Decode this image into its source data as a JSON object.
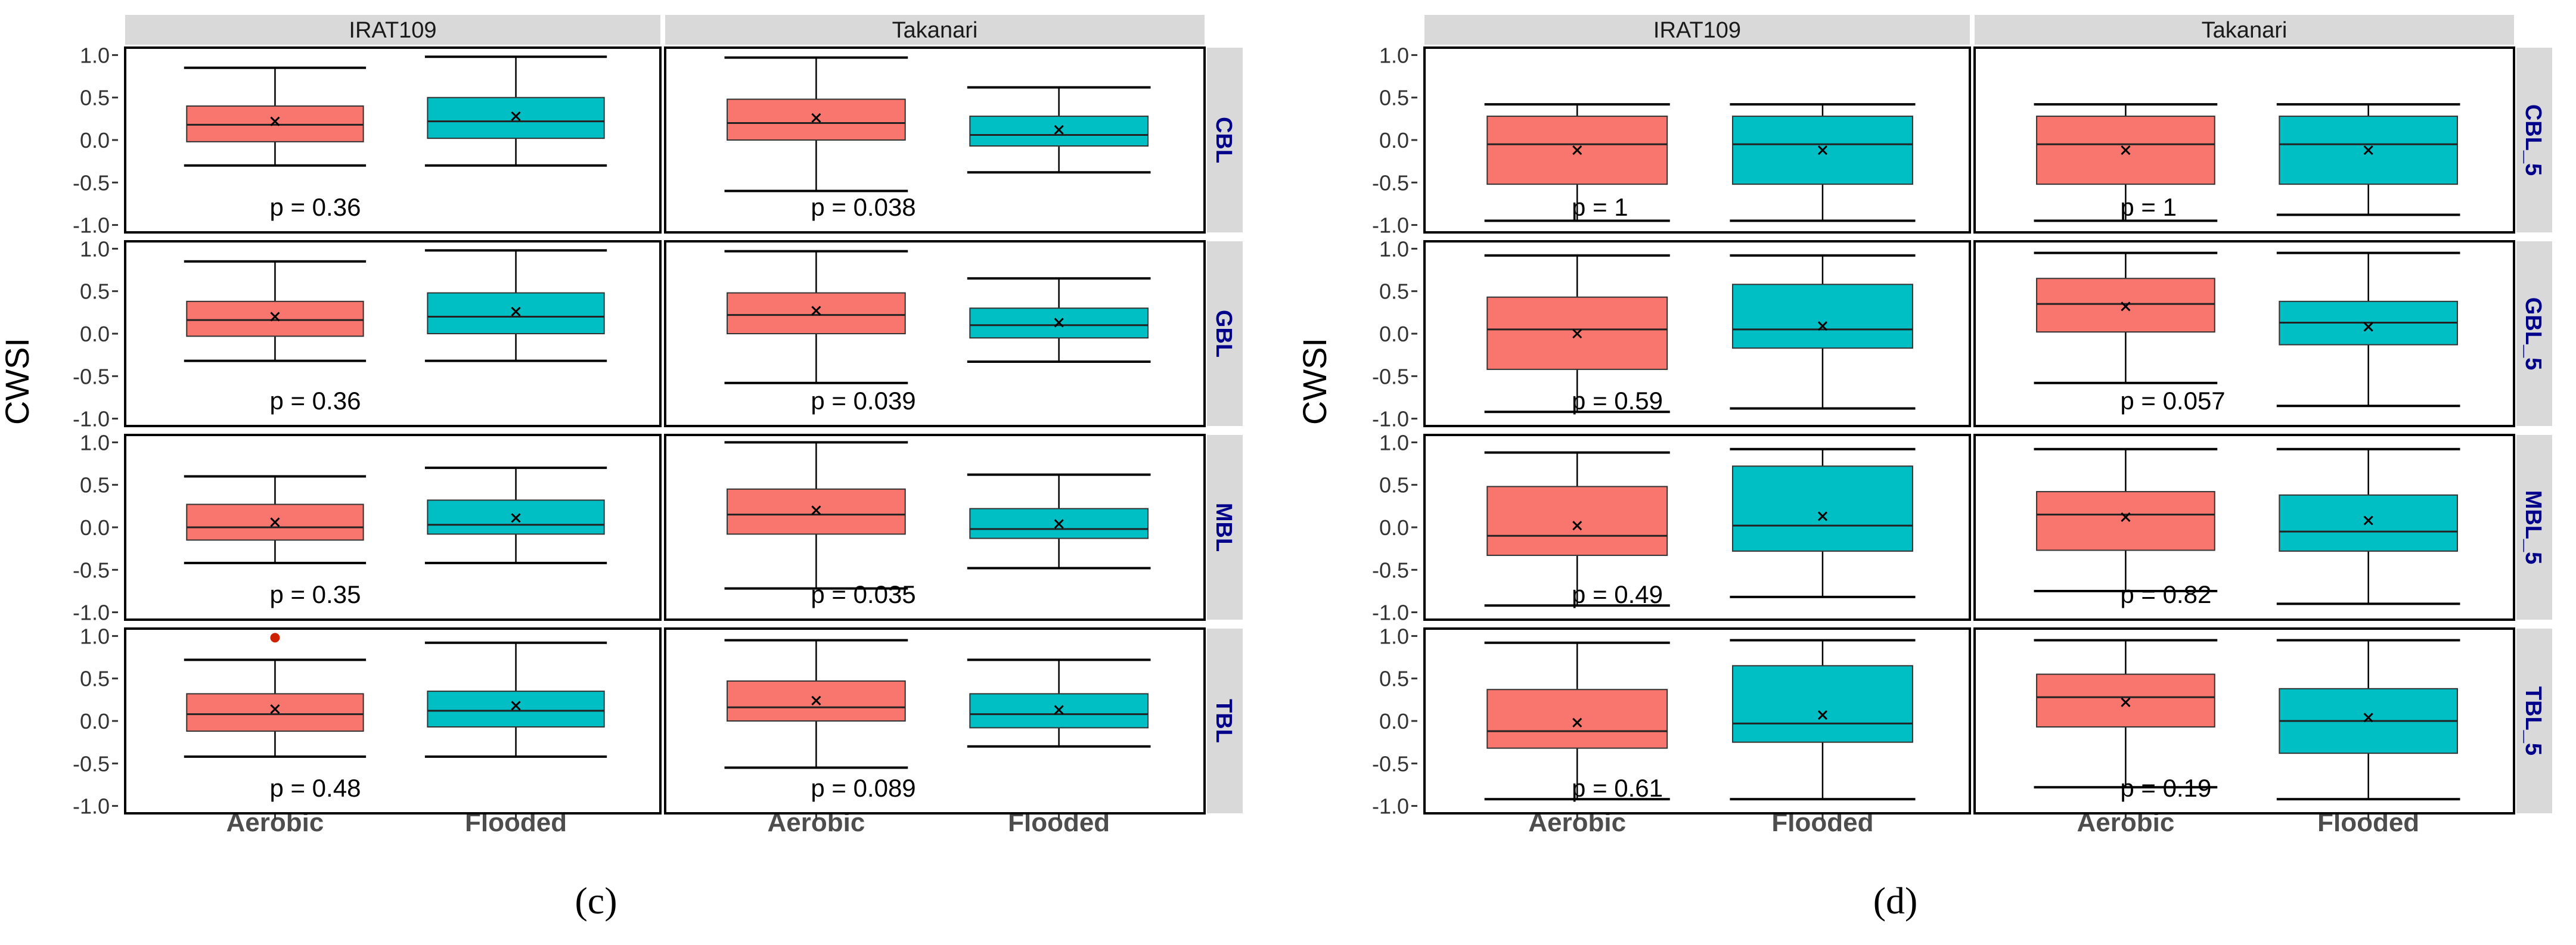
{
  "colors": {
    "aerobic": "#F8766D",
    "flooded": "#00BFC4",
    "strip": "#D9D9D9",
    "facet_right": "#00008B",
    "point": "#CC2200"
  },
  "figure": {
    "panel_c_label": "(c)",
    "panel_d_label": "(d)"
  },
  "chart_data": [
    {
      "type": "box",
      "panel": "(c)",
      "ylabel": "CWSI",
      "ylim": [
        -1.0,
        1.0
      ],
      "yticks": [
        "-1.0",
        "-0.5",
        "0.0",
        "0.5",
        "1.0"
      ],
      "columns": [
        "IRAT109",
        "Takanari"
      ],
      "rows": [
        "CBL",
        "GBL",
        "MBL",
        "TBL"
      ],
      "categories": [
        "Aerobic",
        "Flooded"
      ],
      "facets": [
        {
          "row": 0,
          "col": 0,
          "p": "p = 0.36",
          "boxes": [
            {
              "group": "Aerobic",
              "min": -0.3,
              "q1": -0.02,
              "median": 0.18,
              "q3": 0.4,
              "max": 0.85,
              "mean": 0.22,
              "outliers": []
            },
            {
              "group": "Flooded",
              "min": -0.3,
              "q1": 0.02,
              "median": 0.22,
              "q3": 0.5,
              "max": 0.98,
              "mean": 0.28,
              "outliers": []
            }
          ]
        },
        {
          "row": 0,
          "col": 1,
          "p": "p = 0.038",
          "boxes": [
            {
              "group": "Aerobic",
              "min": -0.6,
              "q1": 0.0,
              "median": 0.2,
              "q3": 0.48,
              "max": 0.97,
              "mean": 0.26,
              "outliers": []
            },
            {
              "group": "Flooded",
              "min": -0.38,
              "q1": -0.07,
              "median": 0.06,
              "q3": 0.28,
              "max": 0.62,
              "mean": 0.12,
              "outliers": []
            }
          ]
        },
        {
          "row": 1,
          "col": 0,
          "p": "p = 0.36",
          "boxes": [
            {
              "group": "Aerobic",
              "min": -0.32,
              "q1": -0.03,
              "median": 0.16,
              "q3": 0.38,
              "max": 0.85,
              "mean": 0.2,
              "outliers": []
            },
            {
              "group": "Flooded",
              "min": -0.32,
              "q1": 0.0,
              "median": 0.2,
              "q3": 0.48,
              "max": 0.98,
              "mean": 0.26,
              "outliers": []
            }
          ]
        },
        {
          "row": 1,
          "col": 1,
          "p": "p = 0.039",
          "boxes": [
            {
              "group": "Aerobic",
              "min": -0.58,
              "q1": 0.0,
              "median": 0.22,
              "q3": 0.48,
              "max": 0.97,
              "mean": 0.27,
              "outliers": []
            },
            {
              "group": "Flooded",
              "min": -0.33,
              "q1": -0.05,
              "median": 0.1,
              "q3": 0.3,
              "max": 0.65,
              "mean": 0.13,
              "outliers": []
            }
          ]
        },
        {
          "row": 2,
          "col": 0,
          "p": "p = 0.35",
          "boxes": [
            {
              "group": "Aerobic",
              "min": -0.42,
              "q1": -0.15,
              "median": 0.0,
              "q3": 0.27,
              "max": 0.6,
              "mean": 0.06,
              "outliers": []
            },
            {
              "group": "Flooded",
              "min": -0.42,
              "q1": -0.08,
              "median": 0.03,
              "q3": 0.32,
              "max": 0.7,
              "mean": 0.11,
              "outliers": []
            }
          ]
        },
        {
          "row": 2,
          "col": 1,
          "p": "p = 0.035",
          "boxes": [
            {
              "group": "Aerobic",
              "min": -0.72,
              "q1": -0.08,
              "median": 0.15,
              "q3": 0.45,
              "max": 1.0,
              "mean": 0.2,
              "outliers": []
            },
            {
              "group": "Flooded",
              "min": -0.48,
              "q1": -0.13,
              "median": -0.02,
              "q3": 0.22,
              "max": 0.62,
              "mean": 0.04,
              "outliers": []
            }
          ]
        },
        {
          "row": 3,
          "col": 0,
          "p": "p = 0.48",
          "boxes": [
            {
              "group": "Aerobic",
              "min": -0.42,
              "q1": -0.12,
              "median": 0.08,
              "q3": 0.32,
              "max": 0.72,
              "mean": 0.14,
              "outliers": [
                0.98
              ]
            },
            {
              "group": "Flooded",
              "min": -0.42,
              "q1": -0.07,
              "median": 0.12,
              "q3": 0.35,
              "max": 0.92,
              "mean": 0.18,
              "outliers": []
            }
          ]
        },
        {
          "row": 3,
          "col": 1,
          "p": "p = 0.089",
          "boxes": [
            {
              "group": "Aerobic",
              "min": -0.55,
              "q1": 0.0,
              "median": 0.16,
              "q3": 0.47,
              "max": 0.95,
              "mean": 0.24,
              "outliers": []
            },
            {
              "group": "Flooded",
              "min": -0.3,
              "q1": -0.08,
              "median": 0.08,
              "q3": 0.32,
              "max": 0.72,
              "mean": 0.13,
              "outliers": []
            }
          ]
        }
      ]
    },
    {
      "type": "box",
      "panel": "(d)",
      "ylabel": "CWSI",
      "ylim": [
        -1.0,
        1.0
      ],
      "yticks": [
        "-1.0",
        "-0.5",
        "0.0",
        "0.5",
        "1.0"
      ],
      "columns": [
        "IRAT109",
        "Takanari"
      ],
      "rows": [
        "CBL_5",
        "GBL_5",
        "MBL_5",
        "TBL_5"
      ],
      "categories": [
        "Aerobic",
        "Flooded"
      ],
      "facets": [
        {
          "row": 0,
          "col": 0,
          "p": "p = 1",
          "boxes": [
            {
              "group": "Aerobic",
              "min": -0.95,
              "q1": -0.52,
              "median": -0.05,
              "q3": 0.28,
              "max": 0.42,
              "mean": -0.12,
              "outliers": []
            },
            {
              "group": "Flooded",
              "min": -0.95,
              "q1": -0.52,
              "median": -0.05,
              "q3": 0.28,
              "max": 0.42,
              "mean": -0.12,
              "outliers": []
            }
          ]
        },
        {
          "row": 0,
          "col": 1,
          "p": "p = 1",
          "boxes": [
            {
              "group": "Aerobic",
              "min": -0.95,
              "q1": -0.52,
              "median": -0.05,
              "q3": 0.28,
              "max": 0.42,
              "mean": -0.12,
              "outliers": []
            },
            {
              "group": "Flooded",
              "min": -0.88,
              "q1": -0.52,
              "median": -0.05,
              "q3": 0.28,
              "max": 0.42,
              "mean": -0.12,
              "outliers": []
            }
          ]
        },
        {
          "row": 1,
          "col": 0,
          "p": "p = 0.59",
          "boxes": [
            {
              "group": "Aerobic",
              "min": -0.92,
              "q1": -0.42,
              "median": 0.05,
              "q3": 0.43,
              "max": 0.92,
              "mean": 0.0,
              "outliers": []
            },
            {
              "group": "Flooded",
              "min": -0.88,
              "q1": -0.17,
              "median": 0.05,
              "q3": 0.58,
              "max": 0.92,
              "mean": 0.09,
              "outliers": []
            }
          ]
        },
        {
          "row": 1,
          "col": 1,
          "p": "p = 0.057",
          "boxes": [
            {
              "group": "Aerobic",
              "min": -0.58,
              "q1": 0.02,
              "median": 0.35,
              "q3": 0.65,
              "max": 0.95,
              "mean": 0.32,
              "outliers": []
            },
            {
              "group": "Flooded",
              "min": -0.85,
              "q1": -0.13,
              "median": 0.13,
              "q3": 0.38,
              "max": 0.95,
              "mean": 0.08,
              "outliers": []
            }
          ]
        },
        {
          "row": 2,
          "col": 0,
          "p": "p = 0.49",
          "boxes": [
            {
              "group": "Aerobic",
              "min": -0.92,
              "q1": -0.33,
              "median": -0.1,
              "q3": 0.48,
              "max": 0.88,
              "mean": 0.02,
              "outliers": []
            },
            {
              "group": "Flooded",
              "min": -0.82,
              "q1": -0.28,
              "median": 0.02,
              "q3": 0.72,
              "max": 0.92,
              "mean": 0.13,
              "outliers": []
            }
          ]
        },
        {
          "row": 2,
          "col": 1,
          "p": "p = 0.82",
          "boxes": [
            {
              "group": "Aerobic",
              "min": -0.75,
              "q1": -0.27,
              "median": 0.15,
              "q3": 0.42,
              "max": 0.92,
              "mean": 0.12,
              "outliers": []
            },
            {
              "group": "Flooded",
              "min": -0.9,
              "q1": -0.28,
              "median": -0.05,
              "q3": 0.38,
              "max": 0.92,
              "mean": 0.08,
              "outliers": []
            }
          ]
        },
        {
          "row": 3,
          "col": 0,
          "p": "p = 0.61",
          "boxes": [
            {
              "group": "Aerobic",
              "min": -0.92,
              "q1": -0.32,
              "median": -0.12,
              "q3": 0.37,
              "max": 0.92,
              "mean": -0.02,
              "outliers": []
            },
            {
              "group": "Flooded",
              "min": -0.92,
              "q1": -0.25,
              "median": -0.03,
              "q3": 0.65,
              "max": 0.95,
              "mean": 0.07,
              "outliers": []
            }
          ]
        },
        {
          "row": 3,
          "col": 1,
          "p": "p = 0.19",
          "boxes": [
            {
              "group": "Aerobic",
              "min": -0.78,
              "q1": -0.07,
              "median": 0.28,
              "q3": 0.55,
              "max": 0.95,
              "mean": 0.22,
              "outliers": []
            },
            {
              "group": "Flooded",
              "min": -0.92,
              "q1": -0.38,
              "median": 0.0,
              "q3": 0.38,
              "max": 0.95,
              "mean": 0.04,
              "outliers": []
            }
          ]
        }
      ]
    }
  ]
}
